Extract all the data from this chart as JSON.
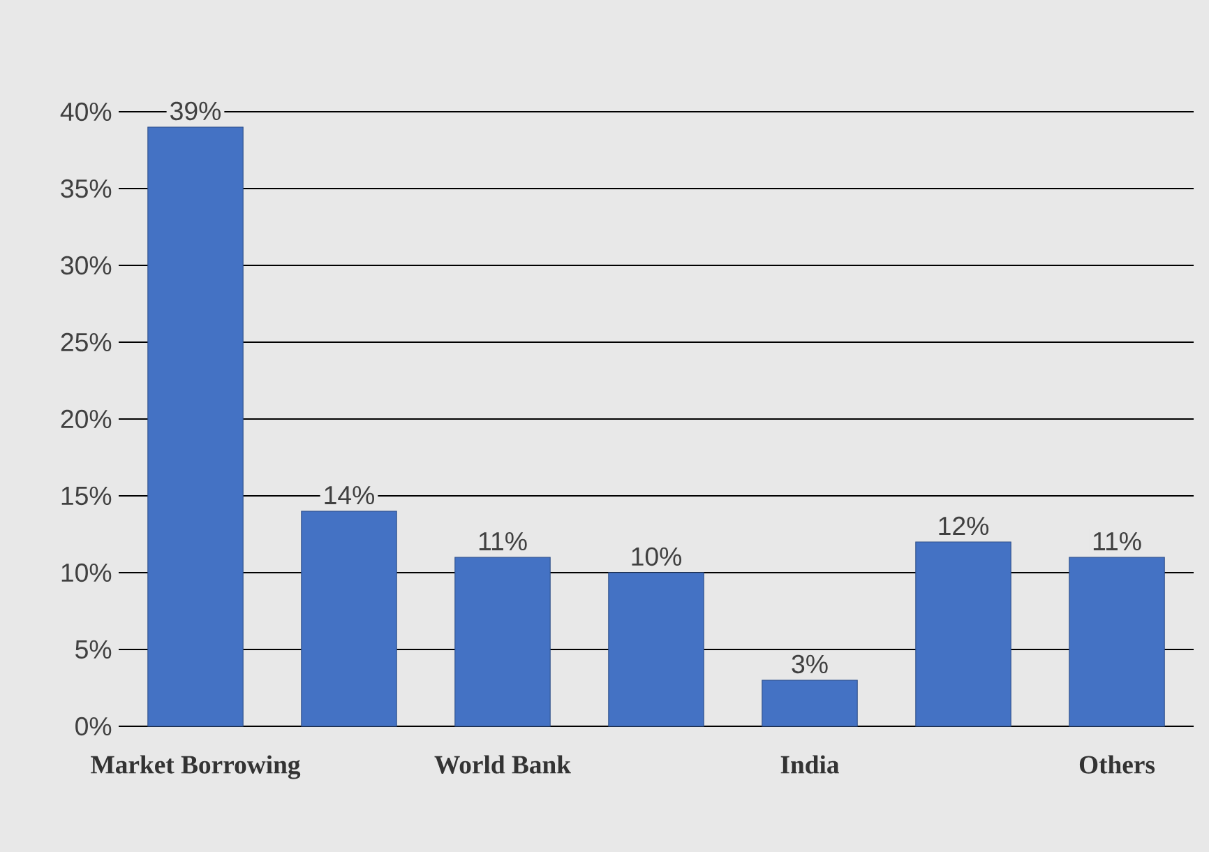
{
  "chart_data": {
    "type": "bar",
    "categories": [
      "Market Borrowing",
      null,
      "World Bank",
      null,
      "India",
      null,
      "Others"
    ],
    "values": [
      39,
      14,
      11,
      10,
      3,
      12,
      11
    ],
    "value_labels": [
      "39%",
      "14%",
      "11%",
      "10%",
      "3%",
      "12%",
      "11%"
    ],
    "color": "#4472c4",
    "ylim": [
      0,
      40
    ],
    "yticks": [
      {
        "value": 0,
        "label": "0%"
      },
      {
        "value": 5,
        "label": "5%"
      },
      {
        "value": 10,
        "label": "10%"
      },
      {
        "value": 15,
        "label": "15%"
      },
      {
        "value": 20,
        "label": "20%"
      },
      {
        "value": 25,
        "label": "25%"
      },
      {
        "value": 30,
        "label": "30%"
      },
      {
        "value": 35,
        "label": "35%"
      },
      {
        "value": 40,
        "label": "40%"
      }
    ],
    "grid": "y"
  }
}
